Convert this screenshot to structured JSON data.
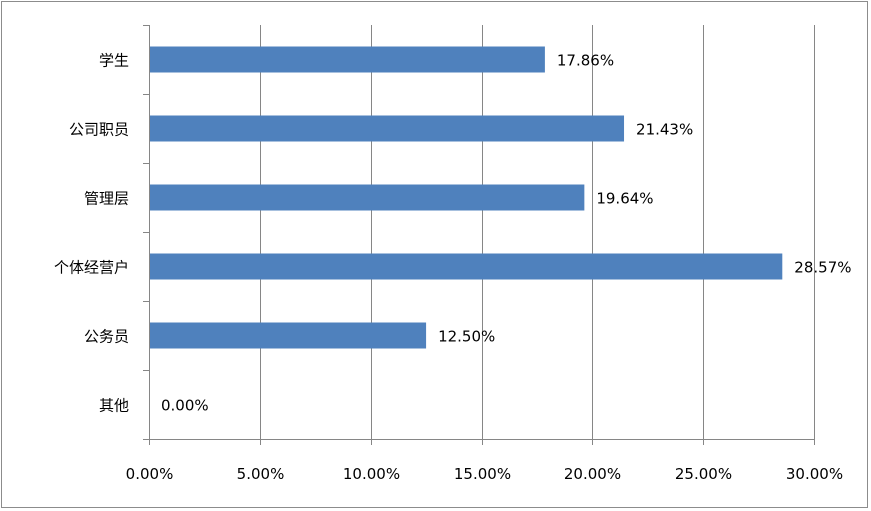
{
  "chart_data": {
    "type": "bar",
    "orientation": "horizontal",
    "categories": [
      "学生",
      "公司职员",
      "管理层",
      "个体经营户",
      "公务员",
      "其他"
    ],
    "values": [
      17.86,
      21.43,
      19.64,
      28.57,
      12.5,
      0.0
    ],
    "data_labels": [
      "17.86%",
      "21.43%",
      "19.64%",
      "28.57%",
      "12.50%",
      "0.00%"
    ],
    "x_ticks": [
      "0.00%",
      "5.00%",
      "10.00%",
      "15.00%",
      "20.00%",
      "25.00%",
      "30.00%"
    ],
    "xlim": [
      0,
      30
    ],
    "title": "",
    "xlabel": "",
    "ylabel": "",
    "grid": "vertical",
    "legend": "none",
    "bar_color": "#4f81bd",
    "grid_color": "#868686",
    "axis_color": "#868686"
  }
}
